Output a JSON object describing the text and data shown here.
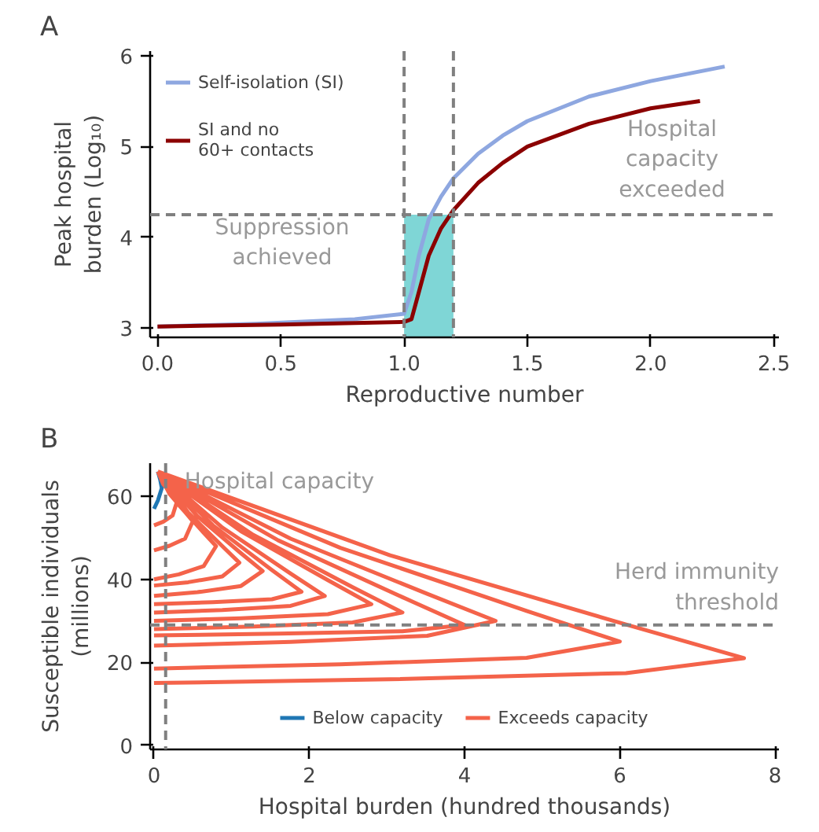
{
  "chart_data": [
    {
      "type": "line",
      "title": "A",
      "xlabel": "Reproductive number",
      "ylabel": "Peak hospital\nburden (Log₁₀)",
      "xlim": [
        -0.03,
        2.52
      ],
      "ylim": [
        2.9,
        6.05
      ],
      "xticks": [
        {
          "value": 0,
          "label": "0.0"
        },
        0.5,
        {
          "value": 1,
          "label": "1.0"
        },
        1.5,
        {
          "value": 2,
          "label": "2.0"
        },
        2.5
      ],
      "yticks": [
        3,
        4,
        5,
        6
      ],
      "grid": false,
      "legend": "top left",
      "series": [
        {
          "name": "Self-isolation (SI)",
          "color": "#8ea7e0",
          "x": [
            0,
            0.4,
            0.8,
            1.0,
            1.03,
            1.06,
            1.1,
            1.15,
            1.2,
            1.3,
            1.4,
            1.5,
            1.75,
            2.0,
            2.3
          ],
          "values": [
            3.02,
            3.05,
            3.1,
            3.16,
            3.4,
            3.8,
            4.2,
            4.45,
            4.65,
            4.92,
            5.12,
            5.28,
            5.55,
            5.72,
            5.88
          ]
        },
        {
          "name": "SI and no\n60+ contacts",
          "color": "#8b0000",
          "x": [
            0,
            0.5,
            1.0,
            1.03,
            1.06,
            1.1,
            1.15,
            1.2,
            1.3,
            1.4,
            1.5,
            1.75,
            2.0,
            2.2
          ],
          "values": [
            3.02,
            3.04,
            3.07,
            3.1,
            3.4,
            3.8,
            4.1,
            4.3,
            4.6,
            4.82,
            5.0,
            5.25,
            5.42,
            5.5
          ]
        }
      ],
      "ref_lines": [
        {
          "axis": "x",
          "value": 1.0,
          "color": "#808080",
          "line_style": "dashed"
        },
        {
          "axis": "x",
          "value": 1.2,
          "color": "#808080",
          "line_style": "dashed"
        },
        {
          "axis": "y",
          "value": 4.25,
          "color": "#808080",
          "line_style": "dashed"
        }
      ],
      "bands": [
        {
          "axis": "x",
          "from": 1.0,
          "to": 1.2,
          "color": "#7fd6d6"
        }
      ],
      "annotations": [
        "Suppression\nachieved",
        "Hospital\ncapacity\nexceeded"
      ]
    },
    {
      "type": "line",
      "title": "B",
      "xlabel": "Hospital burden (hundred thousands)",
      "ylabel": "Susceptible individuals\n(millions)",
      "xlim": [
        -0.05,
        8.05
      ],
      "ylim": [
        -1,
        68
      ],
      "xticks": [
        0,
        2,
        4,
        6,
        8
      ],
      "yticks": [
        0,
        20,
        40,
        60
      ],
      "grid": false,
      "legend": "bottom",
      "series": [
        {
          "name": "Below capacity",
          "color": "#1f77b4",
          "x": [
            0.05,
            0.08,
            0.1,
            0.05,
            0
          ],
          "values": [
            66,
            64,
            62,
            59,
            57
          ]
        },
        {
          "name": "Exceeds capacity",
          "color": "#f4634a",
          "x": [
            0.05,
            3.04,
            6.08,
            7.6,
            6.08,
            3.04,
            0,
            null,
            0.05,
            2.4,
            4.8,
            6.0,
            4.8,
            2.4,
            0,
            null,
            0.05,
            1.76,
            3.52,
            4.4,
            3.52,
            1.76,
            0,
            null,
            0.05,
            1.6,
            3.2,
            4.0,
            3.2,
            1.6,
            0,
            null,
            0.05,
            1.28,
            2.56,
            3.2,
            2.56,
            1.28,
            0,
            null,
            0.05,
            1.12,
            2.24,
            2.8,
            2.24,
            1.12,
            0,
            null,
            0.05,
            0.88,
            1.76,
            2.2,
            1.76,
            0.88,
            0,
            null,
            0.05,
            0.76,
            1.52,
            1.9,
            1.52,
            0.76,
            0,
            null,
            0.05,
            0.56,
            1.12,
            1.4,
            1.12,
            0.56,
            0,
            null,
            0.05,
            0.44,
            0.88,
            1.1,
            0.88,
            0.44,
            0,
            null,
            0.05,
            0.32,
            0.64,
            0.8,
            0.64,
            0.32,
            0,
            null,
            0.05,
            0.2,
            0.4,
            0.5,
            0.4,
            0.2,
            0,
            null,
            0.05,
            0.12,
            0.24,
            0.3,
            0.24,
            0.12,
            0
          ],
          "values": [
            66,
            45.8,
            29.1,
            21,
            17.4,
            15.9,
            15,
            null,
            66,
            47.6,
            32.4,
            25,
            21.1,
            19.5,
            18.5,
            null,
            66,
            49.8,
            36.5,
            30,
            26.4,
            24.9,
            24,
            null,
            66,
            49.4,
            35.7,
            29,
            27.5,
            26.9,
            26.5,
            null,
            66,
            50.7,
            38.1,
            32,
            29.6,
            28.6,
            28,
            null,
            66,
            51.6,
            39.8,
            34,
            31.6,
            30.6,
            30,
            null,
            66,
            52.5,
            41.4,
            36,
            33.6,
            32.6,
            32,
            null,
            66,
            53,
            42.2,
            37,
            35.2,
            34.5,
            34,
            null,
            66,
            55.2,
            46.3,
            42,
            38.4,
            36.9,
            36,
            null,
            66,
            56.1,
            48,
            44,
            40.7,
            39.3,
            38.5,
            null,
            66,
            57.9,
            51.2,
            48,
            43.2,
            41.2,
            40,
            null,
            66,
            60.6,
            56.2,
            54,
            49.8,
            48.1,
            47,
            null,
            66,
            62.9,
            60.3,
            59,
            55.4,
            53.9,
            53
          ]
        }
      ],
      "ref_lines": [
        {
          "axis": "x",
          "value": 0.15,
          "label": "Hospital capacity",
          "color": "#808080",
          "line_style": "dashed"
        },
        {
          "axis": "y",
          "value": 29,
          "label": "Herd immunity\nthreshold",
          "color": "#808080",
          "line_style": "dashed"
        }
      ]
    }
  ]
}
